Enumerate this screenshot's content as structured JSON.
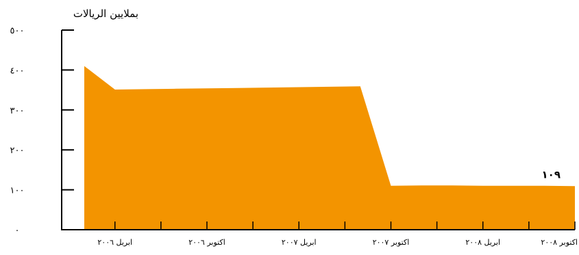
{
  "chart_data": {
    "type": "area",
    "unit_label": "بملايين الريالات",
    "x": [
      "2006-02",
      "2006-04",
      "2006-06",
      "2006-08",
      "2006-10",
      "2006-12",
      "2007-02",
      "2007-04",
      "2007-06",
      "2007-08",
      "2007-10",
      "2007-12",
      "2008-02",
      "2008-04",
      "2008-06",
      "2008-08",
      "2008-10"
    ],
    "series": [
      {
        "values": [
          410,
          351,
          352,
          353,
          354,
          355,
          356,
          357,
          358,
          359,
          110,
          111,
          111,
          110,
          110,
          110,
          109
        ],
        "color": "#F39400"
      }
    ],
    "xtick_labels": [
      "ابريل ٢٠٠٦",
      "اكتوبر ٢٠٠٦",
      "ابريل ٢٠٠٧",
      "اكتوبر ٢٠٠٧",
      "ابريل ٢٠٠٨",
      "اكتوبر ٢٠٠٨"
    ],
    "xtick_positions": [
      "2006-04",
      "2006-10",
      "2007-04",
      "2007-10",
      "2008-04",
      "2008-10"
    ],
    "ytick_labels": [
      "٠",
      "١٠٠",
      "٢٠٠",
      "٣٠٠",
      "٤٠٠",
      "٥٠٠"
    ],
    "ytick_values": [
      0,
      100,
      200,
      300,
      400,
      500
    ],
    "ylim": [
      0,
      500
    ],
    "annotation": {
      "text": "١٠٩",
      "x": "2008-10",
      "y": 109
    },
    "grid": false,
    "legend": "none"
  }
}
